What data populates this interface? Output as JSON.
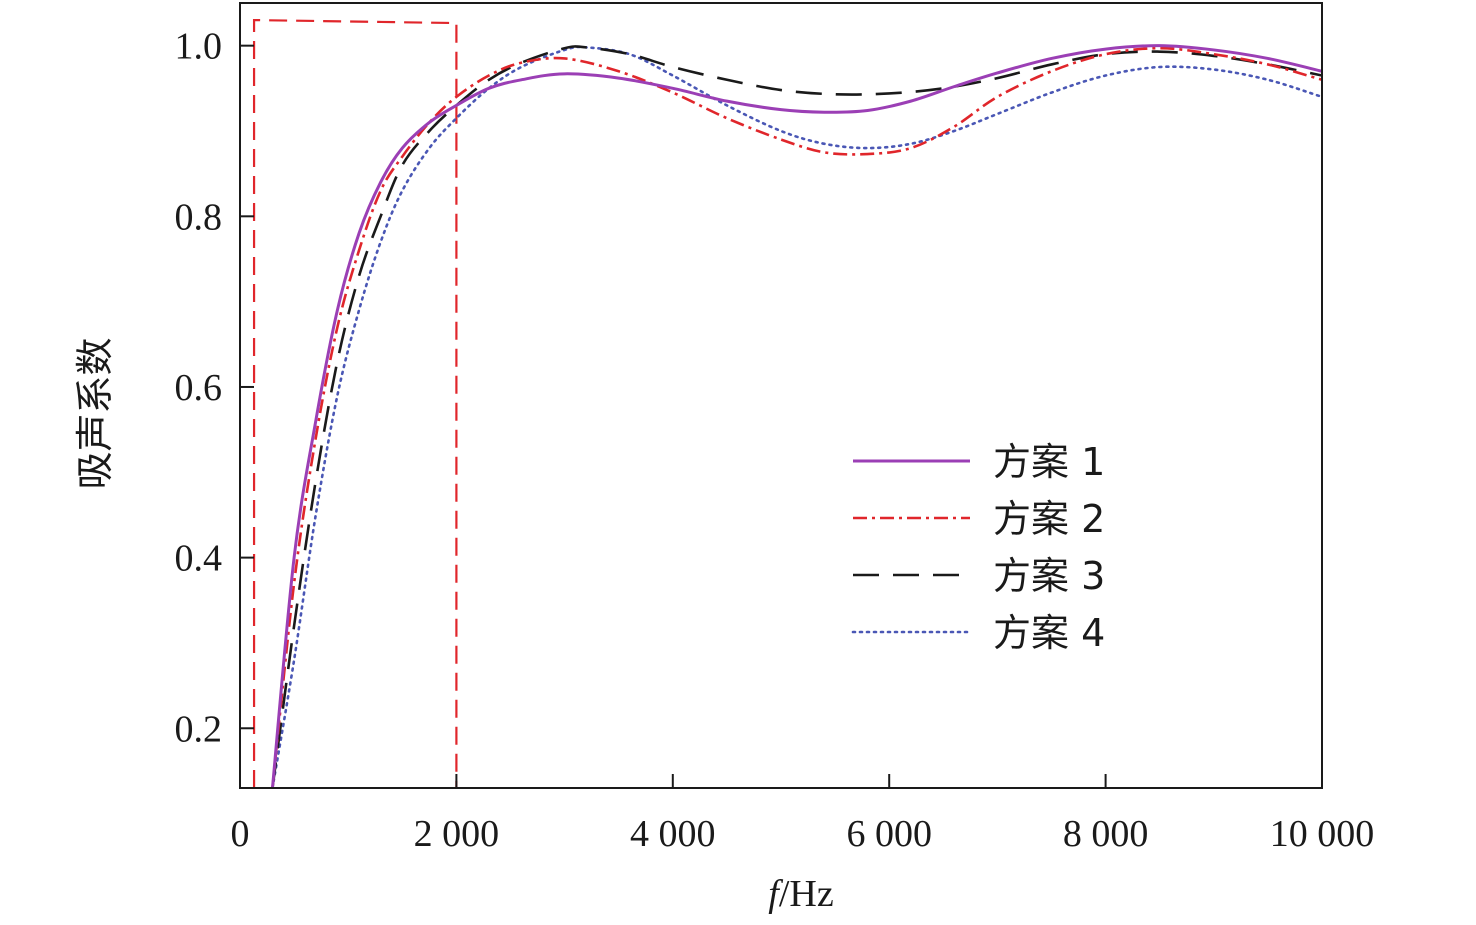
{
  "chart_data": {
    "type": "line",
    "xlabel_italic": "f",
    "xlabel_rest": "/Hz",
    "ylabel": "吸声系数",
    "xlim": [
      0,
      10000
    ],
    "ylim": [
      0.13,
      1.05
    ],
    "x_ticks": [
      0,
      2000,
      4000,
      6000,
      8000,
      10000
    ],
    "x_tick_labels": [
      "0",
      "2 000",
      "4 000",
      "6 000",
      "8 000",
      "10 000"
    ],
    "y_ticks": [
      0.2,
      0.4,
      0.6,
      0.8,
      1.0
    ],
    "y_tick_labels": [
      "0.2",
      "0.4",
      "0.6",
      "0.8",
      "1.0"
    ],
    "grid": false,
    "legend_position": "center-right",
    "highlight_band": {
      "x": [
        130,
        2000
      ],
      "top": 1.03,
      "color": "#e0262b"
    },
    "series": [
      {
        "name": "方案 1",
        "color": "#9b3fb5",
        "dash": "solid",
        "x": [
          300,
          500,
          700,
          900,
          1100,
          1300,
          1500,
          1750,
          2000,
          2300,
          2600,
          3000,
          3500,
          4000,
          4500,
          5000,
          5400,
          5800,
          6200,
          6600,
          7000,
          7500,
          8000,
          8500,
          9000,
          9500,
          10000
        ],
        "y": [
          0.13,
          0.4,
          0.56,
          0.69,
          0.78,
          0.84,
          0.88,
          0.91,
          0.93,
          0.95,
          0.96,
          0.967,
          0.962,
          0.95,
          0.935,
          0.925,
          0.922,
          0.924,
          0.935,
          0.952,
          0.968,
          0.985,
          0.996,
          1.0,
          0.995,
          0.985,
          0.97
        ]
      },
      {
        "name": "方案 2",
        "color": "#e0262b",
        "dash": "dashdot",
        "x": [
          300,
          500,
          700,
          900,
          1100,
          1300,
          1500,
          1750,
          2000,
          2300,
          2600,
          3000,
          3500,
          4000,
          4500,
          5000,
          5400,
          5800,
          6200,
          6600,
          7000,
          7500,
          8000,
          8500,
          9000,
          9500,
          10000
        ],
        "y": [
          0.13,
          0.37,
          0.54,
          0.67,
          0.76,
          0.83,
          0.87,
          0.91,
          0.94,
          0.965,
          0.98,
          0.985,
          0.97,
          0.945,
          0.915,
          0.89,
          0.875,
          0.873,
          0.88,
          0.905,
          0.94,
          0.97,
          0.99,
          0.997,
          0.99,
          0.978,
          0.96
        ]
      },
      {
        "name": "方案 3",
        "color": "#1a1a1a",
        "dash": "dashed",
        "x": [
          300,
          500,
          700,
          900,
          1100,
          1300,
          1500,
          1750,
          2000,
          2300,
          2600,
          3000,
          3200,
          3600,
          4000,
          4500,
          5000,
          5500,
          6000,
          6500,
          7000,
          7500,
          8000,
          8500,
          9000,
          9500,
          10000
        ],
        "y": [
          0.13,
          0.32,
          0.49,
          0.63,
          0.73,
          0.8,
          0.86,
          0.9,
          0.93,
          0.96,
          0.98,
          0.997,
          0.998,
          0.99,
          0.975,
          0.96,
          0.948,
          0.943,
          0.944,
          0.95,
          0.962,
          0.978,
          0.99,
          0.993,
          0.988,
          0.978,
          0.965
        ]
      },
      {
        "name": "方案 4",
        "color": "#4a57b5",
        "dash": "dotted",
        "x": [
          300,
          500,
          700,
          900,
          1100,
          1300,
          1500,
          1750,
          2000,
          2300,
          2600,
          3000,
          3200,
          3600,
          4000,
          4500,
          5000,
          5400,
          5800,
          6200,
          6600,
          7000,
          7500,
          8000,
          8500,
          9000,
          9500,
          10000
        ],
        "y": [
          0.13,
          0.28,
          0.45,
          0.59,
          0.69,
          0.77,
          0.83,
          0.88,
          0.915,
          0.95,
          0.975,
          0.995,
          0.998,
          0.99,
          0.965,
          0.93,
          0.9,
          0.885,
          0.88,
          0.885,
          0.9,
          0.92,
          0.945,
          0.965,
          0.975,
          0.972,
          0.96,
          0.94
        ]
      }
    ]
  }
}
